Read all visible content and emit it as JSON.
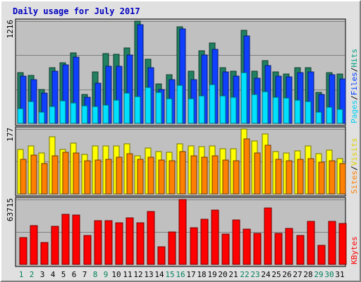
{
  "chart_data": {
    "type": "bar",
    "title": "Daily usage for July 2017",
    "days": [
      "1",
      "2",
      "3",
      "4",
      "5",
      "6",
      "7",
      "8",
      "9",
      "10",
      "11",
      "12",
      "13",
      "14",
      "15",
      "16",
      "17",
      "18",
      "19",
      "20",
      "21",
      "22",
      "23",
      "24",
      "25",
      "26",
      "27",
      "28",
      "29",
      "30",
      "31"
    ],
    "weekend_days": [
      "1",
      "2",
      "8",
      "9",
      "15",
      "16",
      "22",
      "23",
      "29",
      "30"
    ],
    "panels": [
      {
        "id": "hits-panel",
        "max_label": "1216",
        "max": 1216,
        "right_labels": [
          {
            "text": "Pages",
            "color": "#00d0f0"
          },
          {
            "text": "/",
            "color": "#000000"
          },
          {
            "text": "Files",
            "color": "#0040ff"
          },
          {
            "text": "/",
            "color": "#000000"
          },
          {
            "text": "Hits",
            "color": "#00a080"
          }
        ],
        "series": [
          {
            "name": "Hits",
            "color": "#208060",
            "values": [
              600,
              570,
              400,
              660,
              720,
              840,
              340,
              610,
              830,
              820,
              900,
              1216,
              760,
              470,
              580,
              1150,
              620,
              860,
              960,
              660,
              620,
              1110,
              620,
              750,
              610,
              590,
              660,
              660,
              370,
              600,
              590
            ]
          },
          {
            "name": "Files",
            "color": "#1040ff",
            "values": [
              560,
              520,
              360,
              620,
              700,
              790,
              310,
              480,
              680,
              680,
              810,
              1170,
              660,
              400,
              520,
              1120,
              520,
              810,
              880,
              610,
              560,
              1040,
              540,
              690,
              560,
              550,
              600,
              610,
              340,
              580,
              530
            ]
          },
          {
            "name": "Pages",
            "color": "#00e0ff",
            "values": [
              180,
              260,
              130,
              200,
              270,
              240,
              210,
              200,
              220,
              280,
              360,
              320,
              430,
              370,
              290,
              450,
              290,
              330,
              460,
              330,
              310,
              600,
              340,
              380,
              310,
              300,
              280,
              260,
              130,
              190,
              170
            ]
          }
        ]
      },
      {
        "id": "visits-panel",
        "max_label": "177",
        "max": 177,
        "right_labels": [
          {
            "text": "Sites",
            "color": "#ff8000"
          },
          {
            "text": "/",
            "color": "#000000"
          },
          {
            "text": "Visits",
            "color": "#e0d000"
          }
        ],
        "series": [
          {
            "name": "Visits",
            "color": "#ffff00",
            "values": [
              122,
              131,
              112,
              155,
              121,
              138,
              108,
              130,
              130,
              130,
              137,
              103,
              125,
              116,
              114,
              136,
              131,
              129,
              131,
              123,
              123,
              177,
              144,
              163,
              115,
              112,
              117,
              131,
              110,
              120,
              97
            ]
          },
          {
            "name": "Sites",
            "color": "#ff8000",
            "values": [
              95,
              106,
              83,
              104,
              114,
              112,
              90,
              93,
              95,
              101,
              110,
              95,
              101,
              92,
              91,
              115,
              104,
              101,
              103,
              92,
              91,
              150,
              112,
              133,
              95,
              90,
              95,
              97,
              86,
              91,
              83
            ]
          }
        ]
      },
      {
        "id": "kbytes-panel",
        "max_label": "63715",
        "max": 63715,
        "right_labels": [
          {
            "text": "KBytes",
            "color": "#ff0000"
          }
        ],
        "series": [
          {
            "name": "KBytes",
            "color": "#ff0000",
            "values": [
              26200,
              38100,
              21400,
              37300,
              49400,
              48700,
              28500,
              43200,
              43200,
              41000,
              45900,
              40800,
              51600,
              17300,
              32000,
              63715,
              36100,
              44600,
              53400,
              29800,
              43700,
              34600,
              30600,
              55100,
              30600,
              35300,
              28700,
              42400,
              18500,
              42000,
              40400
            ]
          }
        ]
      }
    ]
  }
}
